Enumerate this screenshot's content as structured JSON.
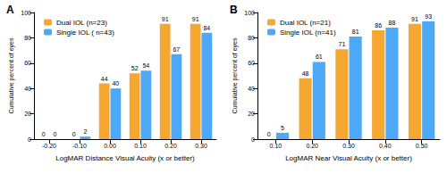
{
  "chart_data": [
    {
      "type": "bar",
      "title": "A",
      "xlabel": "LogMAR Distance Visual Acuity (x or better)",
      "ylabel": "Cumulative percent of eyes",
      "categories": [
        "-0.20",
        "-0.10",
        "0.00",
        "0.10",
        "0.20",
        "0.30"
      ],
      "series": [
        {
          "name": "Dual IOL (n=23)",
          "color": "#f5a732",
          "values": [
            0,
            0,
            44,
            52,
            91,
            91
          ]
        },
        {
          "name": "Single IOL ( n=43)",
          "color": "#4da9f7",
          "values": [
            0,
            2,
            40,
            54,
            67,
            84
          ]
        }
      ],
      "ylim": [
        0,
        100
      ],
      "yticks": [
        0,
        20,
        40,
        60,
        80,
        100
      ],
      "grid": false,
      "legend": "upper left",
      "data_labels": true
    },
    {
      "type": "bar",
      "title": "B",
      "xlabel": "LogMAR Near Visual Acuity (x or better)",
      "ylabel": "Cumulative percent of eyes",
      "categories": [
        "0.10",
        "0.20",
        "0.30",
        "0.40",
        "0.50"
      ],
      "series": [
        {
          "name": "Dual IOL (n=21)",
          "color": "#f5a732",
          "values": [
            0,
            48,
            71,
            86,
            91
          ]
        },
        {
          "name": "Single IOL (n=41)",
          "color": "#4da9f7",
          "values": [
            5,
            61,
            81,
            88,
            93
          ]
        }
      ],
      "ylim": [
        0,
        100
      ],
      "yticks": [
        0,
        20,
        40,
        60,
        80,
        100
      ],
      "grid": false,
      "legend": "upper left",
      "data_labels": true
    }
  ]
}
